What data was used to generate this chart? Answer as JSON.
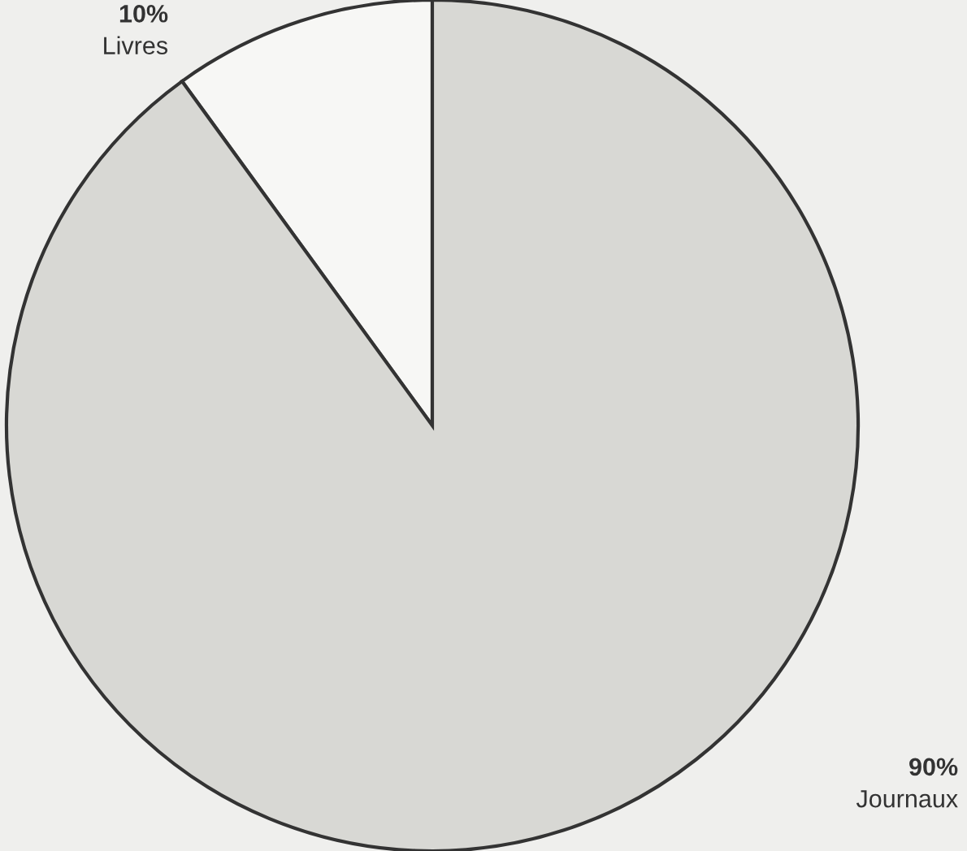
{
  "chart_data": {
    "type": "pie",
    "categories": [
      "Livres",
      "Journaux"
    ],
    "values": [
      10,
      90
    ],
    "colors": [
      "#f7f7f5",
      "#d8d8d4"
    ],
    "value_labels": [
      "10%",
      "90%"
    ]
  }
}
